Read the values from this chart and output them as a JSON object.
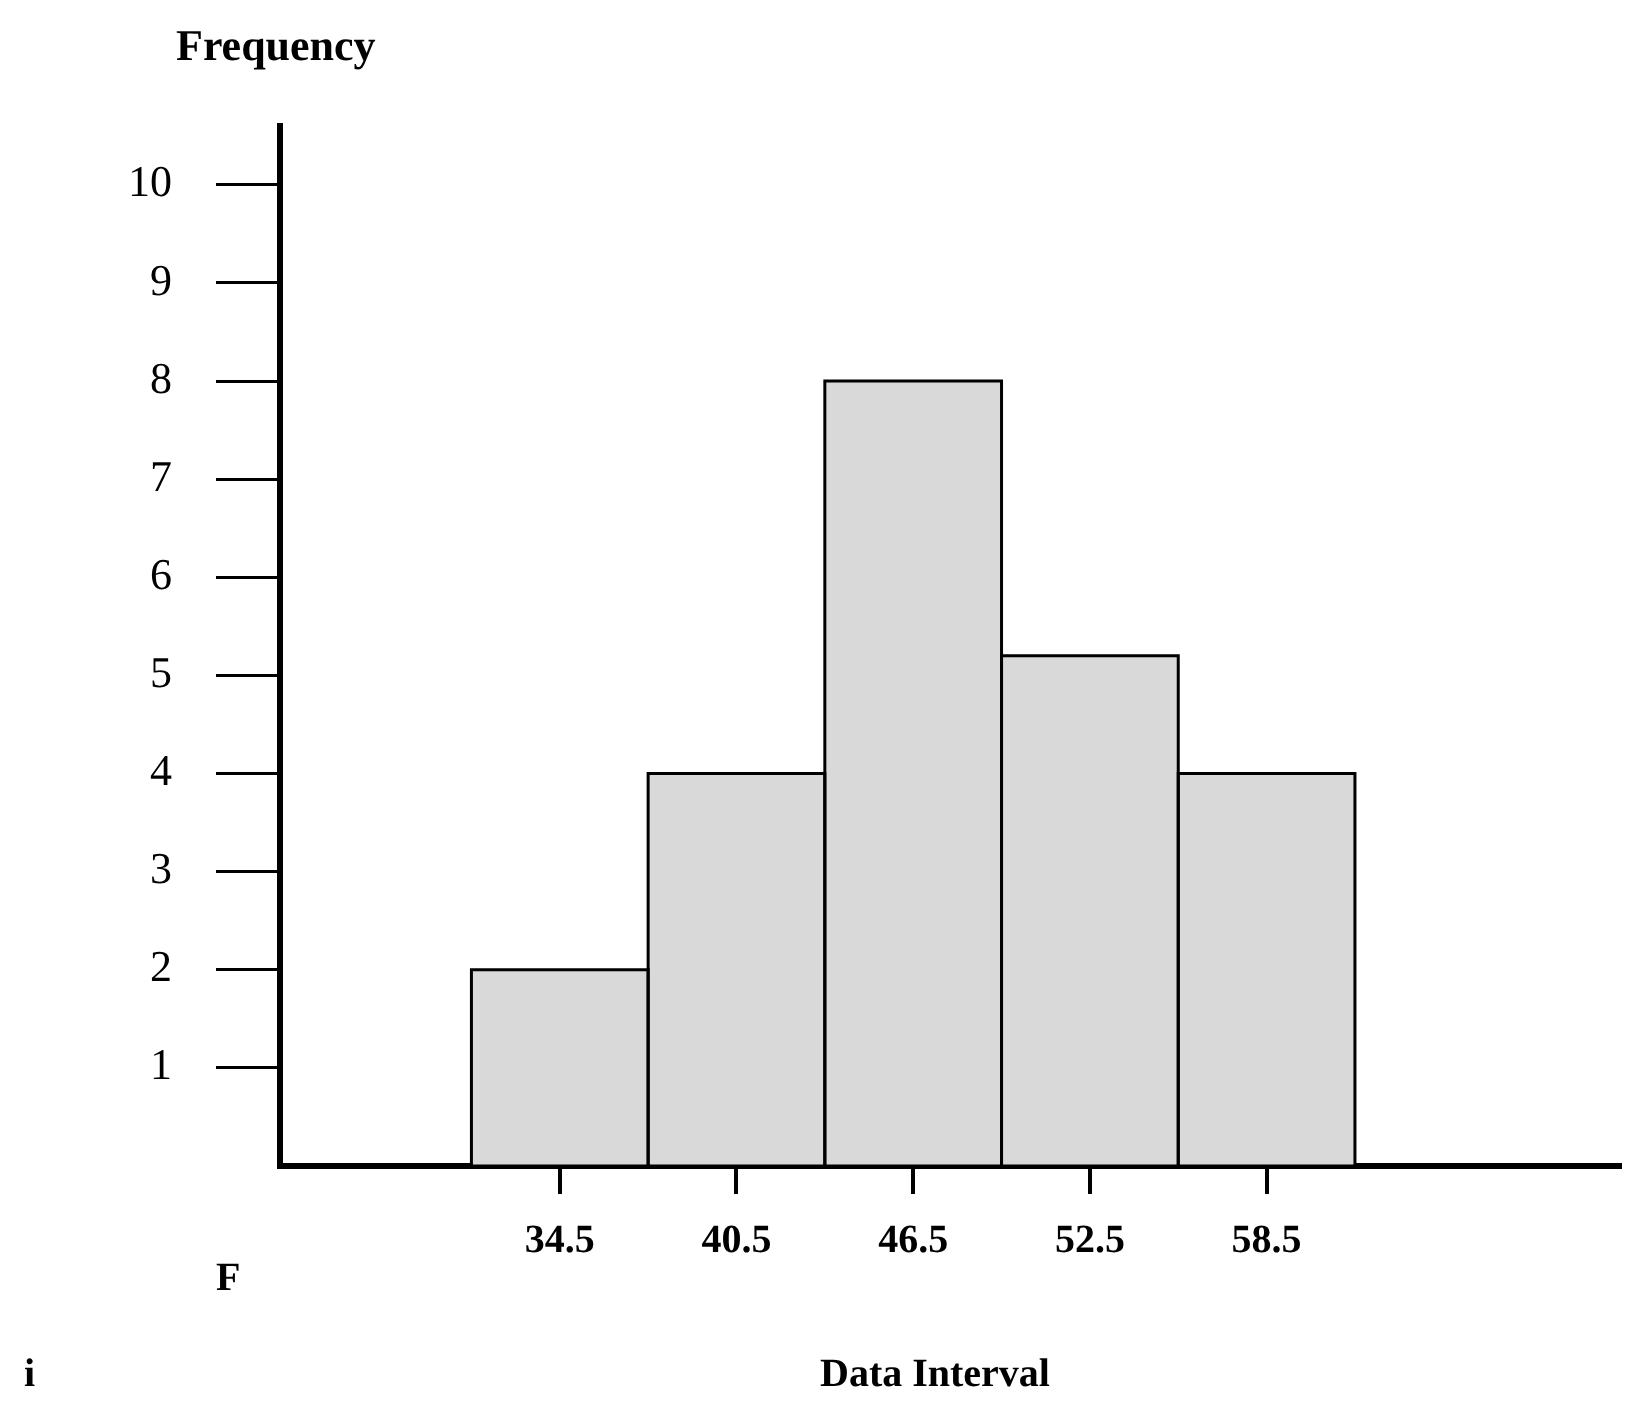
{
  "chart_data": {
    "type": "histogram",
    "ylabel": "Frequency",
    "xlabel": "Data Interval",
    "bins": [
      31.5,
      37.5,
      43.5,
      49.5,
      55.5,
      61.5
    ],
    "values": [
      2,
      4,
      8,
      5.2,
      4
    ],
    "color": "#d9d9d9",
    "xlim": [
      25,
      70.5
    ],
    "xticks": [
      34.5,
      40.5,
      46.5,
      52.5,
      58.5
    ],
    "ylim": [
      0,
      10.6
    ],
    "yticks": [
      1,
      2,
      3,
      4,
      5,
      6,
      7,
      8,
      9,
      10
    ],
    "grid": false,
    "legend": false,
    "annotations": [
      "F",
      "i"
    ]
  }
}
